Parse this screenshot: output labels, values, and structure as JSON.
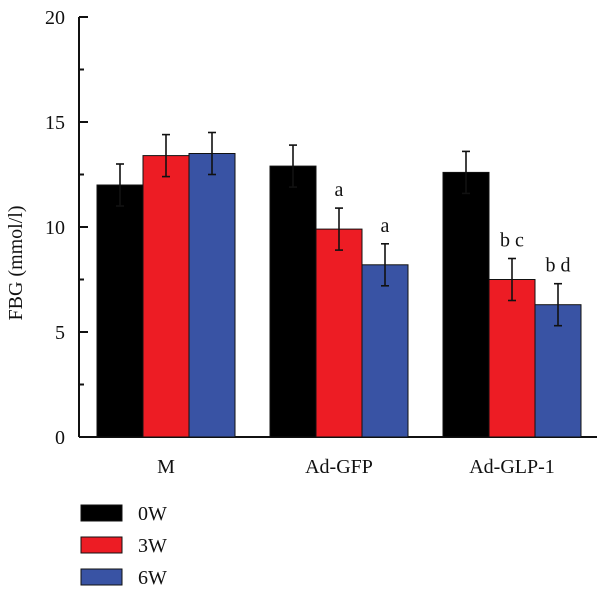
{
  "chart_data": {
    "type": "bar",
    "title": "",
    "xlabel": "",
    "ylabel": "FBG (mmol/l)",
    "ylim": [
      0,
      20
    ],
    "yticks": [
      0,
      5,
      10,
      15,
      20
    ],
    "grid": false,
    "legend_position": "bottom-left",
    "categories": [
      "M",
      "Ad-GFP",
      "Ad-GLP-1"
    ],
    "series": [
      {
        "name": "0W",
        "color": "#000000",
        "values": [
          12.0,
          12.9,
          12.6
        ],
        "errors": [
          1.0,
          1.0,
          1.0
        ],
        "annotations": [
          "",
          "",
          ""
        ]
      },
      {
        "name": "3W",
        "color": "#ed1c24",
        "values": [
          13.4,
          9.9,
          7.5
        ],
        "errors": [
          1.0,
          1.0,
          1.0
        ],
        "annotations": [
          "",
          "a",
          "b c"
        ]
      },
      {
        "name": "6W",
        "color": "#3953a4",
        "values": [
          13.5,
          8.2,
          6.3
        ],
        "errors": [
          1.0,
          1.0,
          1.0
        ],
        "annotations": [
          "",
          "a",
          "b d"
        ]
      }
    ]
  }
}
